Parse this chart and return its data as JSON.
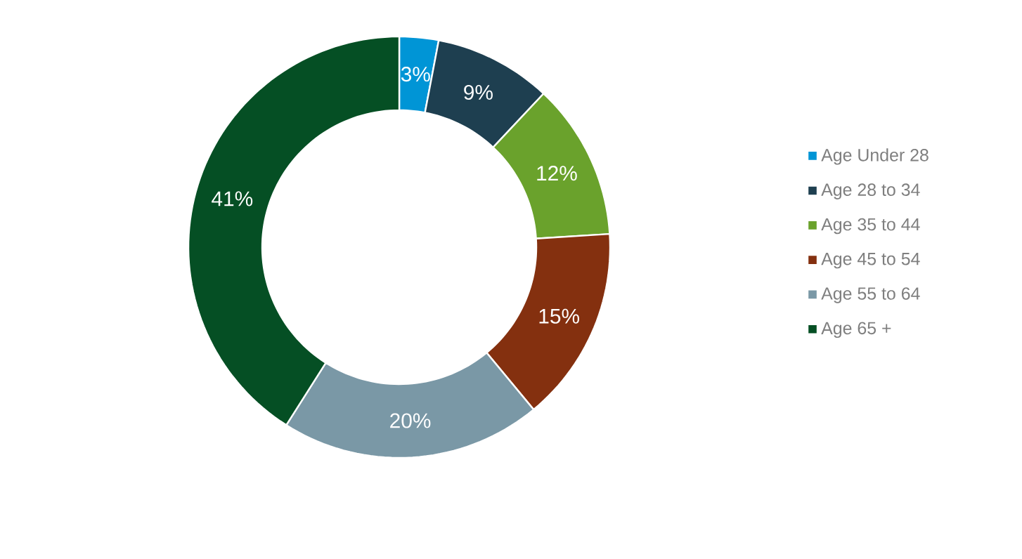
{
  "chart_data": {
    "type": "donut",
    "categories": [
      "Age Under 28",
      "Age 28 to 34",
      "Age 35 to 44",
      "Age 45 to 54",
      "Age 55 to 64",
      "Age 65 +"
    ],
    "values": [
      3,
      9,
      12,
      15,
      20,
      41
    ],
    "value_labels": [
      "3%",
      "9%",
      "12%",
      "15%",
      "20%",
      "41%"
    ],
    "colors": [
      "#0095d6",
      "#1e3f50",
      "#6aa22c",
      "#84300f",
      "#7a98a6",
      "#054f24"
    ],
    "legend": "right"
  }
}
